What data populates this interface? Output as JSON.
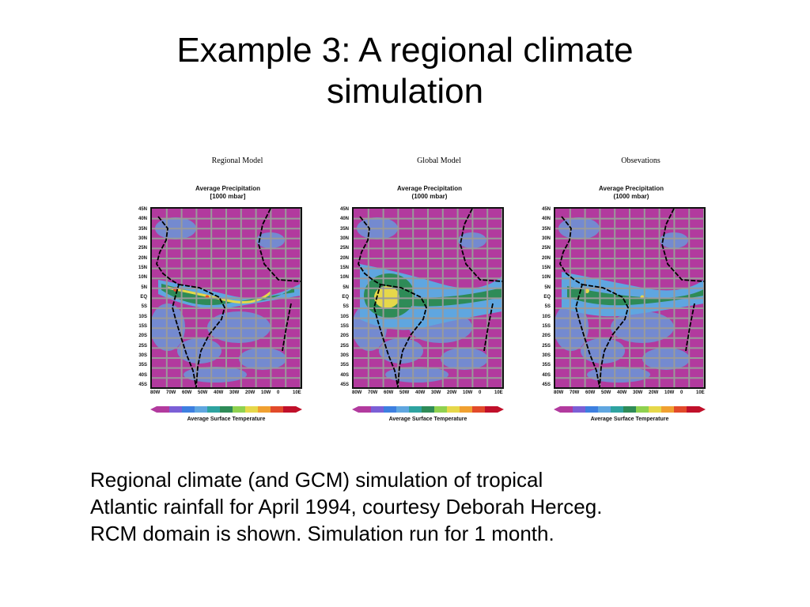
{
  "slide": {
    "title_line1": "Example 3:  A regional climate",
    "title_line2": "simulation",
    "caption_lines": [
      "Regional climate (and GCM) simulation of tropical",
      "Atlantic rainfall for April 1994, courtesy Deborah Herceg.",
      "RCM domain is shown.  Simulation run for 1 month."
    ]
  },
  "figure": {
    "panels": [
      {
        "model": "Regional Model",
        "sub_line1": "Average Precipitation",
        "sub_line2": "[1000 mbar]",
        "colorbar_label": "Average Surface Temperature"
      },
      {
        "model": "Global Model",
        "sub_line1": "Average Precipitation",
        "sub_line2": "(1000 mbar)",
        "colorbar_label": "Average Surface Temperature"
      },
      {
        "model": "Obsevations",
        "sub_line1": "Average Precipitation",
        "sub_line2": "(1000 mbar)",
        "colorbar_label": "Average Surface Temperature"
      }
    ],
    "lat_ticks": [
      "45N",
      "40N",
      "35N",
      "30N",
      "25N",
      "20N",
      "15N",
      "10N",
      "5N",
      "EQ",
      "5S",
      "10S",
      "15S",
      "20S",
      "25S",
      "30S",
      "35S",
      "40S",
      "45S"
    ],
    "lon_ticks": [
      "80W",
      "70W",
      "60W",
      "50W",
      "40W",
      "30W",
      "20W",
      "10W",
      "0",
      "10E"
    ],
    "colors": {
      "background_field": "#b23a9e",
      "grid": "#9a9a9a",
      "coast": "#000000",
      "low_precip": "#5fa6e0",
      "mid_precip": "#2e8b57",
      "high_precip": "#e6d84a",
      "max_precip": "#e24a2a"
    }
  }
}
